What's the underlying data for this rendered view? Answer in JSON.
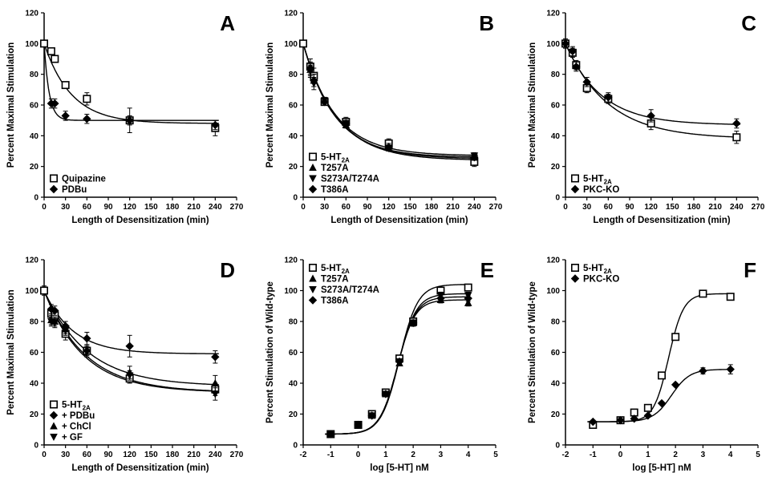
{
  "chart_data": [
    {
      "id": "A",
      "type": "line",
      "panel_label": "A",
      "xlabel": "Length of Desensitization (min)",
      "ylabel": "Percent Maximal Stimulation",
      "xlim": [
        0,
        270
      ],
      "ylim": [
        0,
        120
      ],
      "xticks": [
        "0",
        "30",
        "60",
        "90",
        "120",
        "150",
        "180",
        "210",
        "240",
        "270"
      ],
      "yticks": [
        "0",
        "20",
        "40",
        "60",
        "80",
        "100",
        "120"
      ],
      "legend_position": "bottom-left",
      "series": [
        {
          "name": "Quipazine",
          "marker": "square",
          "x": [
            0,
            10,
            15,
            30,
            60,
            120,
            240
          ],
          "y": [
            100,
            95,
            90,
            73,
            64,
            50,
            45
          ],
          "err": [
            0,
            2,
            2,
            2,
            4,
            8,
            5
          ],
          "curve": {
            "plateau": 48,
            "span": 52,
            "tau": 38
          }
        },
        {
          "name": "PDBu",
          "marker": "diamond",
          "x": [
            10,
            15,
            30,
            60,
            120,
            240
          ],
          "y": [
            61,
            61,
            53,
            51,
            50,
            47
          ],
          "err": [
            3,
            3,
            3,
            3,
            3,
            3
          ],
          "curve": {
            "plateau": 50,
            "span": 50,
            "tau": 7
          }
        }
      ]
    },
    {
      "id": "B",
      "type": "line",
      "panel_label": "B",
      "xlabel": "Length of Desensitization (min)",
      "ylabel": "Percent Maximal Stimulation",
      "xlim": [
        0,
        270
      ],
      "ylim": [
        0,
        120
      ],
      "xticks": [
        "0",
        "30",
        "60",
        "90",
        "120",
        "150",
        "180",
        "210",
        "240",
        "270"
      ],
      "yticks": [
        "0",
        "20",
        "40",
        "60",
        "80",
        "100",
        "120"
      ],
      "legend_position": "bottom-left",
      "series": [
        {
          "name": "5-HT",
          "name_sub": "2A",
          "marker": "square",
          "x": [
            0,
            10,
            15,
            30,
            60,
            120,
            240
          ],
          "y": [
            100,
            85,
            79,
            62,
            49,
            35,
            23
          ],
          "err": [
            0,
            5,
            5,
            2,
            3,
            3,
            3
          ],
          "curve": {
            "plateau": 27,
            "span": 73,
            "tau": 45
          }
        },
        {
          "name": "T257A",
          "marker": "triangle-up",
          "x": [
            10,
            15,
            30,
            60,
            120,
            240
          ],
          "y": [
            83,
            76,
            63,
            47,
            33,
            26
          ],
          "err": [
            4,
            4,
            2,
            2,
            2,
            2
          ],
          "curve": {
            "plateau": 25,
            "span": 75,
            "tau": 46
          }
        },
        {
          "name": "S273A/T274A",
          "marker": "triangle-down",
          "x": [
            10,
            15,
            30,
            60,
            120,
            240
          ],
          "y": [
            82,
            74,
            63,
            48,
            32,
            27
          ],
          "err": [
            4,
            4,
            2,
            2,
            2,
            2
          ],
          "curve": {
            "plateau": 26,
            "span": 74,
            "tau": 44
          }
        },
        {
          "name": "T386A",
          "marker": "diamond",
          "x": [
            10,
            15,
            30,
            60,
            120,
            240
          ],
          "y": [
            84,
            76,
            62,
            48,
            32,
            26
          ],
          "err": [
            4,
            4,
            2,
            2,
            2,
            2
          ],
          "curve": {
            "plateau": 24,
            "span": 76,
            "tau": 47
          }
        }
      ]
    },
    {
      "id": "C",
      "type": "line",
      "panel_label": "C",
      "xlabel": "Length of Desensitization (min)",
      "ylabel": "Percent Maximal Stimulation",
      "xlim": [
        0,
        270
      ],
      "ylim": [
        0,
        120
      ],
      "xticks": [
        "0",
        "30",
        "60",
        "90",
        "120",
        "150",
        "180",
        "210",
        "240",
        "270"
      ],
      "yticks": [
        "0",
        "20",
        "40",
        "60",
        "80",
        "100",
        "120"
      ],
      "legend_position": "bottom-left",
      "series": [
        {
          "name": "5-HT",
          "name_sub": "2A",
          "marker": "square",
          "x": [
            0,
            10,
            15,
            30,
            60,
            120,
            240
          ],
          "y": [
            100,
            94,
            86,
            71,
            64,
            48,
            39
          ],
          "err": [
            3,
            3,
            3,
            3,
            3,
            4,
            4
          ],
          "curve": {
            "plateau": 38,
            "span": 62,
            "tau": 60
          }
        },
        {
          "name": "PKC-KO",
          "marker": "diamond",
          "x": [
            0,
            10,
            15,
            30,
            60,
            120,
            240
          ],
          "y": [
            100,
            95,
            85,
            75,
            65,
            53,
            48
          ],
          "err": [
            3,
            3,
            3,
            3,
            3,
            4,
            3
          ],
          "curve": {
            "plateau": 47,
            "span": 53,
            "tau": 50
          }
        }
      ]
    },
    {
      "id": "D",
      "type": "line",
      "panel_label": "D",
      "xlabel": "Length of Desensitization (min)",
      "ylabel": "Percent Maximal Stimulation",
      "xlim": [
        0,
        270
      ],
      "ylim": [
        0,
        120
      ],
      "xticks": [
        "0",
        "30",
        "60",
        "90",
        "120",
        "150",
        "180",
        "210",
        "240",
        "270"
      ],
      "yticks": [
        "0",
        "20",
        "40",
        "60",
        "80",
        "100",
        "120"
      ],
      "legend_position": "bottom-left",
      "series": [
        {
          "name": "5-HT",
          "name_sub": "2A",
          "marker": "square",
          "x": [
            0,
            10,
            15,
            30,
            60,
            120,
            240
          ],
          "y": [
            100,
            85,
            84,
            72,
            61,
            43,
            36
          ],
          "err": [
            3,
            3,
            3,
            4,
            3,
            3,
            4
          ],
          "curve": {
            "plateau": 34,
            "span": 66,
            "tau": 55
          }
        },
        {
          "name": "+ PDBu",
          "marker": "diamond",
          "x": [
            10,
            15,
            30,
            60,
            120,
            240
          ],
          "y": [
            88,
            87,
            77,
            69,
            64,
            57
          ],
          "err": [
            3,
            3,
            3,
            4,
            7,
            4
          ],
          "curve": {
            "plateau": 59,
            "span": 41,
            "tau": 40
          }
        },
        {
          "name": "+ ChCl",
          "marker": "triangle-up",
          "x": [
            10,
            15,
            30,
            60,
            120,
            240
          ],
          "y": [
            81,
            80,
            75,
            62,
            47,
            40
          ],
          "err": [
            3,
            3,
            3,
            3,
            4,
            5
          ],
          "curve": {
            "plateau": 38,
            "span": 62,
            "tau": 60
          }
        },
        {
          "name": "+ GF",
          "marker": "triangle-down",
          "x": [
            10,
            15,
            30,
            60,
            120,
            240
          ],
          "y": [
            80,
            79,
            74,
            60,
            45,
            33
          ],
          "err": [
            3,
            3,
            3,
            3,
            3,
            4
          ],
          "curve": {
            "plateau": 34,
            "span": 66,
            "tau": 58
          }
        }
      ]
    },
    {
      "id": "E",
      "type": "line",
      "panel_label": "E",
      "xlabel": "log [5-HT] nM",
      "ylabel": "Percent Stimulation of Wild-type",
      "xlim": [
        -2,
        5
      ],
      "ylim": [
        0,
        120
      ],
      "xticks": [
        "-2",
        "-1",
        "0",
        "1",
        "2",
        "3",
        "4",
        "5"
      ],
      "yticks": [
        "0",
        "20",
        "40",
        "60",
        "80",
        "100",
        "120"
      ],
      "legend_position": "top-left",
      "series": [
        {
          "name": "5-HT",
          "name_sub": "2A",
          "marker": "square",
          "x": [
            -1,
            0,
            0.5,
            1,
            1.5,
            2,
            3,
            4
          ],
          "y": [
            7,
            13,
            20,
            34,
            56,
            80,
            100,
            102
          ],
          "err": [
            1,
            1,
            1,
            1,
            1,
            2,
            2,
            1
          ],
          "curve": {
            "bottom": 7,
            "top": 104,
            "ec50": 1.5,
            "hill": 1.3
          }
        },
        {
          "name": "T257A",
          "marker": "triangle-up",
          "x": [
            -1,
            0,
            0.5,
            1,
            1.5,
            2,
            3,
            4
          ],
          "y": [
            7,
            13,
            19,
            33,
            53,
            79,
            94,
            92
          ],
          "err": [
            1,
            1,
            1,
            1,
            1,
            2,
            2,
            2
          ],
          "curve": {
            "bottom": 7,
            "top": 94,
            "ec50": 1.42,
            "hill": 1.35
          }
        },
        {
          "name": "S273A/T274A",
          "marker": "triangle-down",
          "x": [
            -1,
            0,
            0.5,
            1,
            1.5,
            2,
            3,
            4
          ],
          "y": [
            7,
            13,
            19,
            33,
            54,
            79,
            97,
            97
          ],
          "err": [
            1,
            1,
            1,
            1,
            1,
            2,
            2,
            2
          ],
          "curve": {
            "bottom": 7,
            "top": 98,
            "ec50": 1.45,
            "hill": 1.3
          }
        },
        {
          "name": "T386A",
          "marker": "diamond",
          "x": [
            -1,
            0,
            0.5,
            1,
            1.5,
            2,
            3,
            4
          ],
          "y": [
            7,
            13,
            19,
            33,
            54,
            79,
            95,
            95
          ],
          "err": [
            1,
            1,
            1,
            1,
            1,
            2,
            2,
            2
          ],
          "curve": {
            "bottom": 7,
            "top": 96,
            "ec50": 1.44,
            "hill": 1.32
          }
        }
      ]
    },
    {
      "id": "F",
      "type": "line",
      "panel_label": "F",
      "xlabel": "log [5-HT] nM",
      "ylabel": "Percent Stimulation of Wild-type",
      "xlim": [
        -2,
        5
      ],
      "ylim": [
        0,
        120
      ],
      "xticks": [
        "-2",
        "-1",
        "0",
        "1",
        "2",
        "3",
        "4",
        "5"
      ],
      "yticks": [
        "0",
        "20",
        "40",
        "60",
        "80",
        "100",
        "120"
      ],
      "legend_position": "top-left",
      "series": [
        {
          "name": "5-HT",
          "name_sub": "2A",
          "marker": "square",
          "x": [
            -1,
            0,
            0.5,
            1,
            1.5,
            2,
            3,
            4
          ],
          "y": [
            13,
            16,
            21,
            24,
            45,
            70,
            98,
            96
          ],
          "err": [
            1,
            1,
            1,
            1,
            2,
            2,
            2,
            2
          ],
          "curve": {
            "bottom": 15,
            "top": 98,
            "ec50": 1.75,
            "hill": 1.6
          }
        },
        {
          "name": "PKC-KO",
          "marker": "diamond",
          "x": [
            -1,
            0,
            0.5,
            1,
            1.5,
            2,
            3,
            4
          ],
          "y": [
            15,
            16,
            17,
            19,
            27,
            39,
            48,
            49
          ],
          "err": [
            1,
            1,
            1,
            1,
            1,
            1,
            2,
            3
          ],
          "curve": {
            "bottom": 15,
            "top": 49,
            "ec50": 1.85,
            "hill": 1.3
          }
        }
      ]
    }
  ]
}
